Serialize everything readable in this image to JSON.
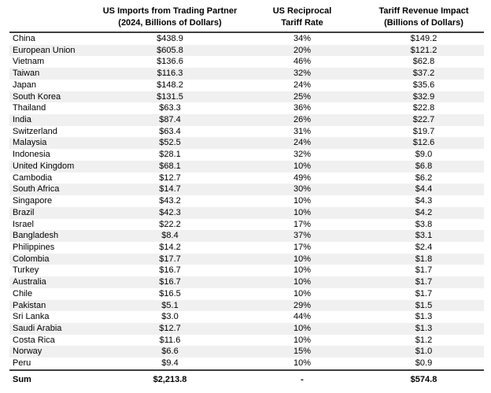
{
  "table": {
    "column_headers": {
      "partner": "",
      "imports": {
        "line1": "US Imports from Trading Partner",
        "line2": "(2024, Billions of Dollars)"
      },
      "tariff": {
        "line1": "US Reciprocal",
        "line2": "Tariff Rate"
      },
      "revenue": {
        "line1": "Tariff Revenue Impact",
        "line2": "(Billions of Dollars)"
      }
    },
    "rows": [
      [
        "China",
        "$438.9",
        "34%",
        "$149.2"
      ],
      [
        "European Union",
        "$605.8",
        "20%",
        "$121.2"
      ],
      [
        "Vietnam",
        "$136.6",
        "46%",
        "$62.8"
      ],
      [
        "Taiwan",
        "$116.3",
        "32%",
        "$37.2"
      ],
      [
        "Japan",
        "$148.2",
        "24%",
        "$35.6"
      ],
      [
        "South Korea",
        "$131.5",
        "25%",
        "$32.9"
      ],
      [
        "Thailand",
        "$63.3",
        "36%",
        "$22.8"
      ],
      [
        "India",
        "$87.4",
        "26%",
        "$22.7"
      ],
      [
        "Switzerland",
        "$63.4",
        "31%",
        "$19.7"
      ],
      [
        "Malaysia",
        "$52.5",
        "24%",
        "$12.6"
      ],
      [
        "Indonesia",
        "$28.1",
        "32%",
        "$9.0"
      ],
      [
        "United Kingdom",
        "$68.1",
        "10%",
        "$6.8"
      ],
      [
        "Cambodia",
        "$12.7",
        "49%",
        "$6.2"
      ],
      [
        "South Africa",
        "$14.7",
        "30%",
        "$4.4"
      ],
      [
        "Singapore",
        "$43.2",
        "10%",
        "$4.3"
      ],
      [
        "Brazil",
        "$42.3",
        "10%",
        "$4.2"
      ],
      [
        "Israel",
        "$22.2",
        "17%",
        "$3.8"
      ],
      [
        "Bangladesh",
        "$8.4",
        "37%",
        "$3.1"
      ],
      [
        "Philippines",
        "$14.2",
        "17%",
        "$2.4"
      ],
      [
        "Colombia",
        "$17.7",
        "10%",
        "$1.8"
      ],
      [
        "Turkey",
        "$16.7",
        "10%",
        "$1.7"
      ],
      [
        "Australia",
        "$16.7",
        "10%",
        "$1.7"
      ],
      [
        "Chile",
        "$16.5",
        "10%",
        "$1.7"
      ],
      [
        "Pakistan",
        "$5.1",
        "29%",
        "$1.5"
      ],
      [
        "Sri Lanka",
        "$3.0",
        "44%",
        "$1.3"
      ],
      [
        "Saudi Arabia",
        "$12.7",
        "10%",
        "$1.3"
      ],
      [
        "Costa Rica",
        "$11.6",
        "10%",
        "$1.2"
      ],
      [
        "Norway",
        "$6.6",
        "15%",
        "$1.0"
      ],
      [
        "Peru",
        "$9.4",
        "10%",
        "$0.9"
      ]
    ],
    "sum_row": {
      "label": "Sum",
      "imports": "$2,213.8",
      "tariff": "-",
      "revenue": "$574.8"
    }
  },
  "colors": {
    "row_alt_background": "#f0f0f0",
    "rule": "#3f3f3f",
    "text": "#000000"
  },
  "chart_data": {
    "type": "table",
    "columns": [
      "Trading Partner",
      "US Imports from Trading Partner (2024, Billions of Dollars)",
      "US Reciprocal Tariff Rate",
      "Tariff Revenue Impact (Billions of Dollars)"
    ],
    "rows": [
      [
        "China",
        438.9,
        "34%",
        149.2
      ],
      [
        "European Union",
        605.8,
        "20%",
        121.2
      ],
      [
        "Vietnam",
        136.6,
        "46%",
        62.8
      ],
      [
        "Taiwan",
        116.3,
        "32%",
        37.2
      ],
      [
        "Japan",
        148.2,
        "24%",
        35.6
      ],
      [
        "South Korea",
        131.5,
        "25%",
        32.9
      ],
      [
        "Thailand",
        63.3,
        "36%",
        22.8
      ],
      [
        "India",
        87.4,
        "26%",
        22.7
      ],
      [
        "Switzerland",
        63.4,
        "31%",
        19.7
      ],
      [
        "Malaysia",
        52.5,
        "24%",
        12.6
      ],
      [
        "Indonesia",
        28.1,
        "32%",
        9.0
      ],
      [
        "United Kingdom",
        68.1,
        "10%",
        6.8
      ],
      [
        "Cambodia",
        12.7,
        "49%",
        6.2
      ],
      [
        "South Africa",
        14.7,
        "30%",
        4.4
      ],
      [
        "Singapore",
        43.2,
        "10%",
        4.3
      ],
      [
        "Brazil",
        42.3,
        "10%",
        4.2
      ],
      [
        "Israel",
        22.2,
        "17%",
        3.8
      ],
      [
        "Bangladesh",
        8.4,
        "37%",
        3.1
      ],
      [
        "Philippines",
        14.2,
        "17%",
        2.4
      ],
      [
        "Colombia",
        17.7,
        "10%",
        1.8
      ],
      [
        "Turkey",
        16.7,
        "10%",
        1.7
      ],
      [
        "Australia",
        16.7,
        "10%",
        1.7
      ],
      [
        "Chile",
        16.5,
        "10%",
        1.7
      ],
      [
        "Pakistan",
        5.1,
        "29%",
        1.5
      ],
      [
        "Sri Lanka",
        3.0,
        "44%",
        1.3
      ],
      [
        "Saudi Arabia",
        12.7,
        "10%",
        1.3
      ],
      [
        "Costa Rica",
        11.6,
        "10%",
        1.2
      ],
      [
        "Norway",
        6.6,
        "15%",
        1.0
      ],
      [
        "Peru",
        9.4,
        "10%",
        0.9
      ]
    ],
    "sum": [
      "Sum",
      2213.8,
      "-",
      574.8
    ]
  }
}
